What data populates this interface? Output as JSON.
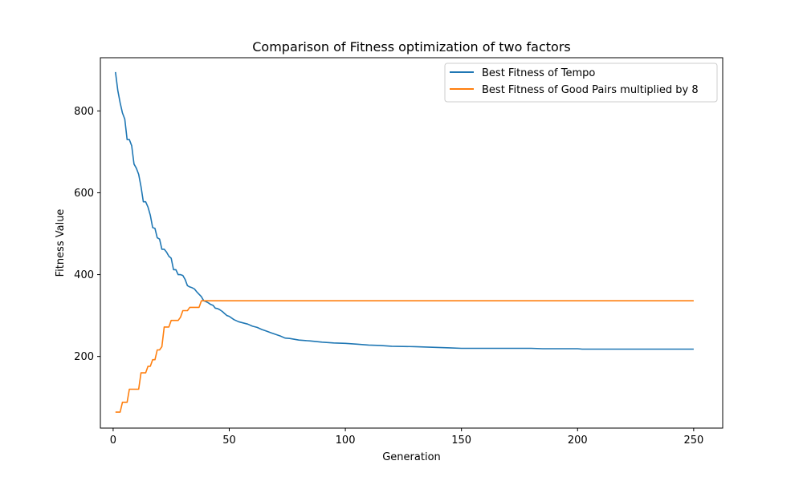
{
  "chart_data": {
    "type": "line",
    "title": "Comparison of Fitness optimization of two factors",
    "xlabel": "Generation",
    "ylabel": "Fitness Value",
    "xlim": [
      -5.5,
      262.5
    ],
    "ylim": [
      25,
      930
    ],
    "xticks": [
      0,
      50,
      100,
      150,
      200,
      250
    ],
    "yticks": [
      200,
      400,
      600,
      800
    ],
    "grid": false,
    "legend_position": "upper right",
    "series": [
      {
        "name": "Best Fitness of Tempo",
        "color": "#1f77b4",
        "x": [
          1,
          2,
          3,
          4,
          5,
          6,
          7,
          8,
          9,
          10,
          11,
          12,
          13,
          14,
          15,
          16,
          17,
          18,
          19,
          20,
          21,
          22,
          23,
          24,
          25,
          26,
          27,
          28,
          29,
          30,
          31,
          32,
          33,
          34,
          35,
          36,
          37,
          38,
          39,
          40,
          41,
          42,
          43,
          44,
          45,
          46,
          47,
          48,
          49,
          50,
          52,
          54,
          56,
          58,
          60,
          62,
          64,
          66,
          68,
          70,
          72,
          74,
          76,
          78,
          80,
          85,
          90,
          95,
          100,
          105,
          110,
          115,
          120,
          130,
          140,
          145,
          150,
          160,
          170,
          180,
          185,
          190,
          200,
          202,
          210,
          220,
          230,
          240,
          250
        ],
        "y": [
          895,
          850,
          820,
          795,
          780,
          730,
          730,
          715,
          670,
          660,
          645,
          615,
          578,
          578,
          565,
          545,
          515,
          513,
          490,
          487,
          462,
          462,
          455,
          445,
          440,
          412,
          412,
          400,
          400,
          398,
          388,
          373,
          370,
          368,
          365,
          358,
          352,
          346,
          336,
          334,
          331,
          327,
          325,
          318,
          317,
          314,
          310,
          305,
          300,
          298,
          290,
          285,
          282,
          279,
          274,
          271,
          266,
          262,
          258,
          254,
          250,
          245,
          244,
          242,
          240,
          238,
          235,
          233,
          232,
          230,
          228,
          227,
          225,
          224,
          222,
          221,
          220,
          220,
          220,
          220,
          219,
          219,
          219,
          218,
          218,
          218,
          218,
          218,
          218
        ]
      },
      {
        "name": "Best Fitness of Good Pairs multiplied by 8",
        "color": "#ff7f0e",
        "x": [
          1,
          2,
          3,
          4,
          5,
          6,
          7,
          8,
          9,
          10,
          11,
          12,
          13,
          14,
          15,
          16,
          17,
          18,
          19,
          20,
          21,
          22,
          23,
          24,
          25,
          26,
          27,
          28,
          29,
          30,
          31,
          32,
          33,
          34,
          35,
          36,
          37,
          38,
          39,
          40,
          250
        ],
        "y": [
          64,
          64,
          64,
          88,
          88,
          88,
          120,
          120,
          120,
          120,
          120,
          160,
          160,
          160,
          176,
          176,
          192,
          192,
          216,
          216,
          224,
          272,
          272,
          272,
          288,
          288,
          288,
          288,
          296,
          312,
          312,
          312,
          320,
          320,
          320,
          320,
          320,
          336,
          336,
          336,
          336
        ]
      }
    ]
  }
}
